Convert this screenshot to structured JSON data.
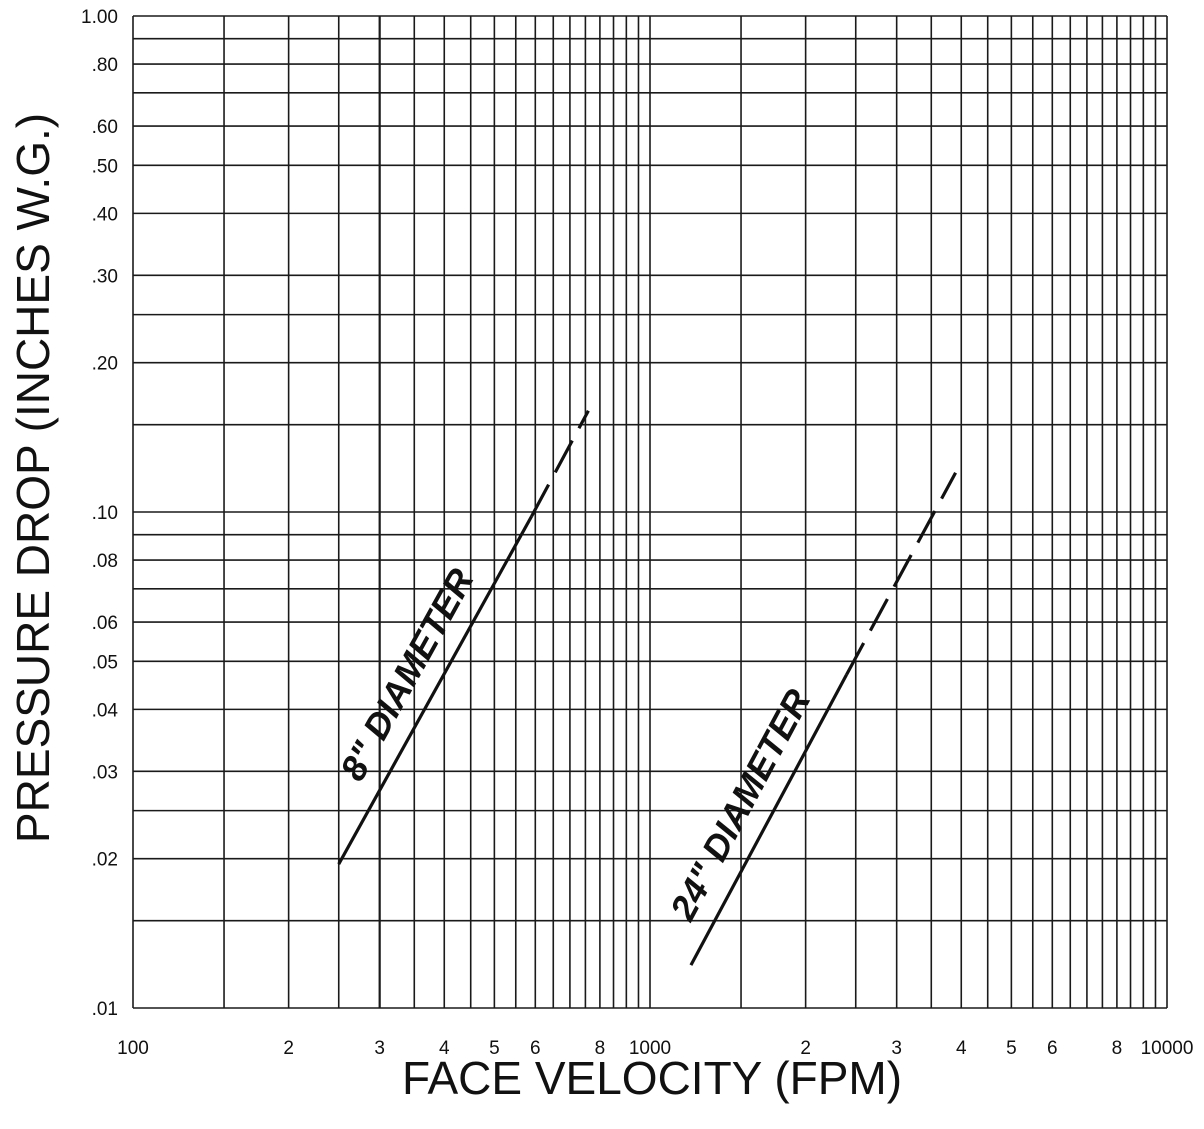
{
  "chart_data": {
    "type": "line",
    "title": "",
    "xlabel": "FACE VELOCITY (FPM)",
    "ylabel": "PRESSURE DROP (INCHES W.G.)",
    "xscale": "log",
    "yscale": "log",
    "xlim": [
      100,
      10000
    ],
    "ylim": [
      0.01,
      1.0
    ],
    "grid": true,
    "x_tick_labels": [
      {
        "value": 100,
        "label": "100"
      },
      {
        "value": 200,
        "label": "2"
      },
      {
        "value": 300,
        "label": "3"
      },
      {
        "value": 400,
        "label": "4"
      },
      {
        "value": 500,
        "label": "5"
      },
      {
        "value": 600,
        "label": "6"
      },
      {
        "value": 800,
        "label": "8"
      },
      {
        "value": 1000,
        "label": "1000"
      },
      {
        "value": 2000,
        "label": "2"
      },
      {
        "value": 3000,
        "label": "3"
      },
      {
        "value": 4000,
        "label": "4"
      },
      {
        "value": 5000,
        "label": "5"
      },
      {
        "value": 6000,
        "label": "6"
      },
      {
        "value": 8000,
        "label": "8"
      },
      {
        "value": 10000,
        "label": "10000"
      }
    ],
    "y_tick_labels": [
      {
        "value": 0.01,
        "label": ".01"
      },
      {
        "value": 0.02,
        "label": ".02"
      },
      {
        "value": 0.03,
        "label": ".03"
      },
      {
        "value": 0.04,
        "label": ".04"
      },
      {
        "value": 0.05,
        "label": ".05"
      },
      {
        "value": 0.06,
        "label": ".06"
      },
      {
        "value": 0.08,
        "label": ".08"
      },
      {
        "value": 0.1,
        "label": ".10"
      },
      {
        "value": 0.2,
        "label": ".20"
      },
      {
        "value": 0.3,
        "label": ".30"
      },
      {
        "value": 0.4,
        "label": ".40"
      },
      {
        "value": 0.5,
        "label": ".50"
      },
      {
        "value": 0.6,
        "label": ".60"
      },
      {
        "value": 0.8,
        "label": ".80"
      },
      {
        "value": 1.0,
        "label": "1.00"
      }
    ],
    "x_gridlines": [
      100,
      150,
      200,
      250,
      300,
      350,
      400,
      450,
      500,
      550,
      600,
      650,
      700,
      750,
      800,
      850,
      900,
      950,
      1000,
      1500,
      2000,
      2500,
      3000,
      3500,
      4000,
      4500,
      5000,
      5500,
      6000,
      6500,
      7000,
      7500,
      8000,
      8500,
      9000,
      9500,
      10000
    ],
    "y_gridlines": [
      0.01,
      0.015,
      0.02,
      0.025,
      0.03,
      0.04,
      0.05,
      0.06,
      0.07,
      0.08,
      0.09,
      0.1,
      0.15,
      0.2,
      0.25,
      0.3,
      0.4,
      0.5,
      0.6,
      0.7,
      0.8,
      0.9,
      1.0
    ],
    "x_major_gridlines": [
      300
    ],
    "series": [
      {
        "name": "8\" DIAMETER",
        "solid": [
          [
            250,
            0.0195
          ],
          [
            590,
            0.098
          ]
        ],
        "dashed": [
          [
            590,
            0.098
          ],
          [
            760,
            0.16
          ]
        ]
      },
      {
        "name": "24\" DIAMETER",
        "solid": [
          [
            1200,
            0.0122
          ],
          [
            2400,
            0.047
          ]
        ],
        "dashed": [
          [
            2400,
            0.047
          ],
          [
            3900,
            0.12
          ]
        ]
      }
    ]
  }
}
